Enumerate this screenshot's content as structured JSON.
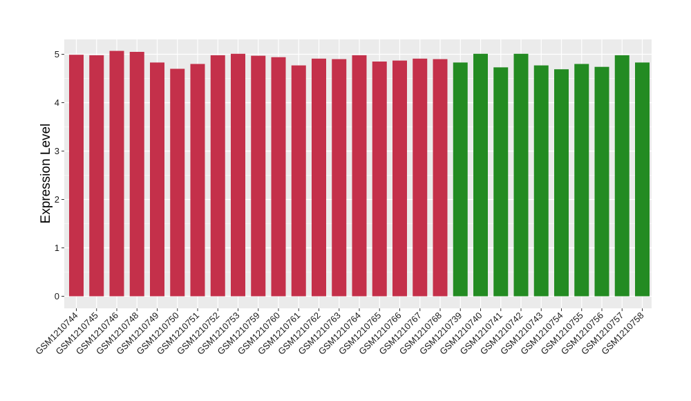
{
  "chart_data": {
    "type": "bar",
    "title": "",
    "xlabel": "",
    "ylabel": "Expression Level",
    "ylim": [
      -0.25,
      5.3
    ],
    "yticks": [
      0,
      1,
      2,
      3,
      4,
      5
    ],
    "grid": true,
    "legend": "none",
    "colors": {
      "group1": "#c4304a",
      "group2": "#238b22",
      "panel": "#ebebeb",
      "grid": "#ffffff"
    },
    "categories": [
      "GSM1210744",
      "GSM1210745",
      "GSM1210746",
      "GSM1210748",
      "GSM1210749",
      "GSM1210750",
      "GSM1210751",
      "GSM1210752",
      "GSM1210753",
      "GSM1210759",
      "GSM1210760",
      "GSM1210761",
      "GSM1210762",
      "GSM1210763",
      "GSM1210764",
      "GSM1210765",
      "GSM1210766",
      "GSM1210767",
      "GSM1210768",
      "GSM1210739",
      "GSM1210740",
      "GSM1210741",
      "GSM1210742",
      "GSM1210743",
      "GSM1210754",
      "GSM1210755",
      "GSM1210756",
      "GSM1210757",
      "GSM1210758"
    ],
    "values": [
      4.99,
      4.98,
      5.07,
      5.05,
      4.83,
      4.7,
      4.8,
      4.98,
      5.01,
      4.97,
      4.94,
      4.77,
      4.91,
      4.9,
      4.98,
      4.85,
      4.87,
      4.91,
      4.9,
      4.83,
      5.01,
      4.73,
      5.01,
      4.77,
      4.69,
      4.8,
      4.74,
      4.98,
      4.83
    ],
    "groups": [
      "group1",
      "group1",
      "group1",
      "group1",
      "group1",
      "group1",
      "group1",
      "group1",
      "group1",
      "group1",
      "group1",
      "group1",
      "group1",
      "group1",
      "group1",
      "group1",
      "group1",
      "group1",
      "group1",
      "group2",
      "group2",
      "group2",
      "group2",
      "group2",
      "group2",
      "group2",
      "group2",
      "group2",
      "group2"
    ]
  }
}
